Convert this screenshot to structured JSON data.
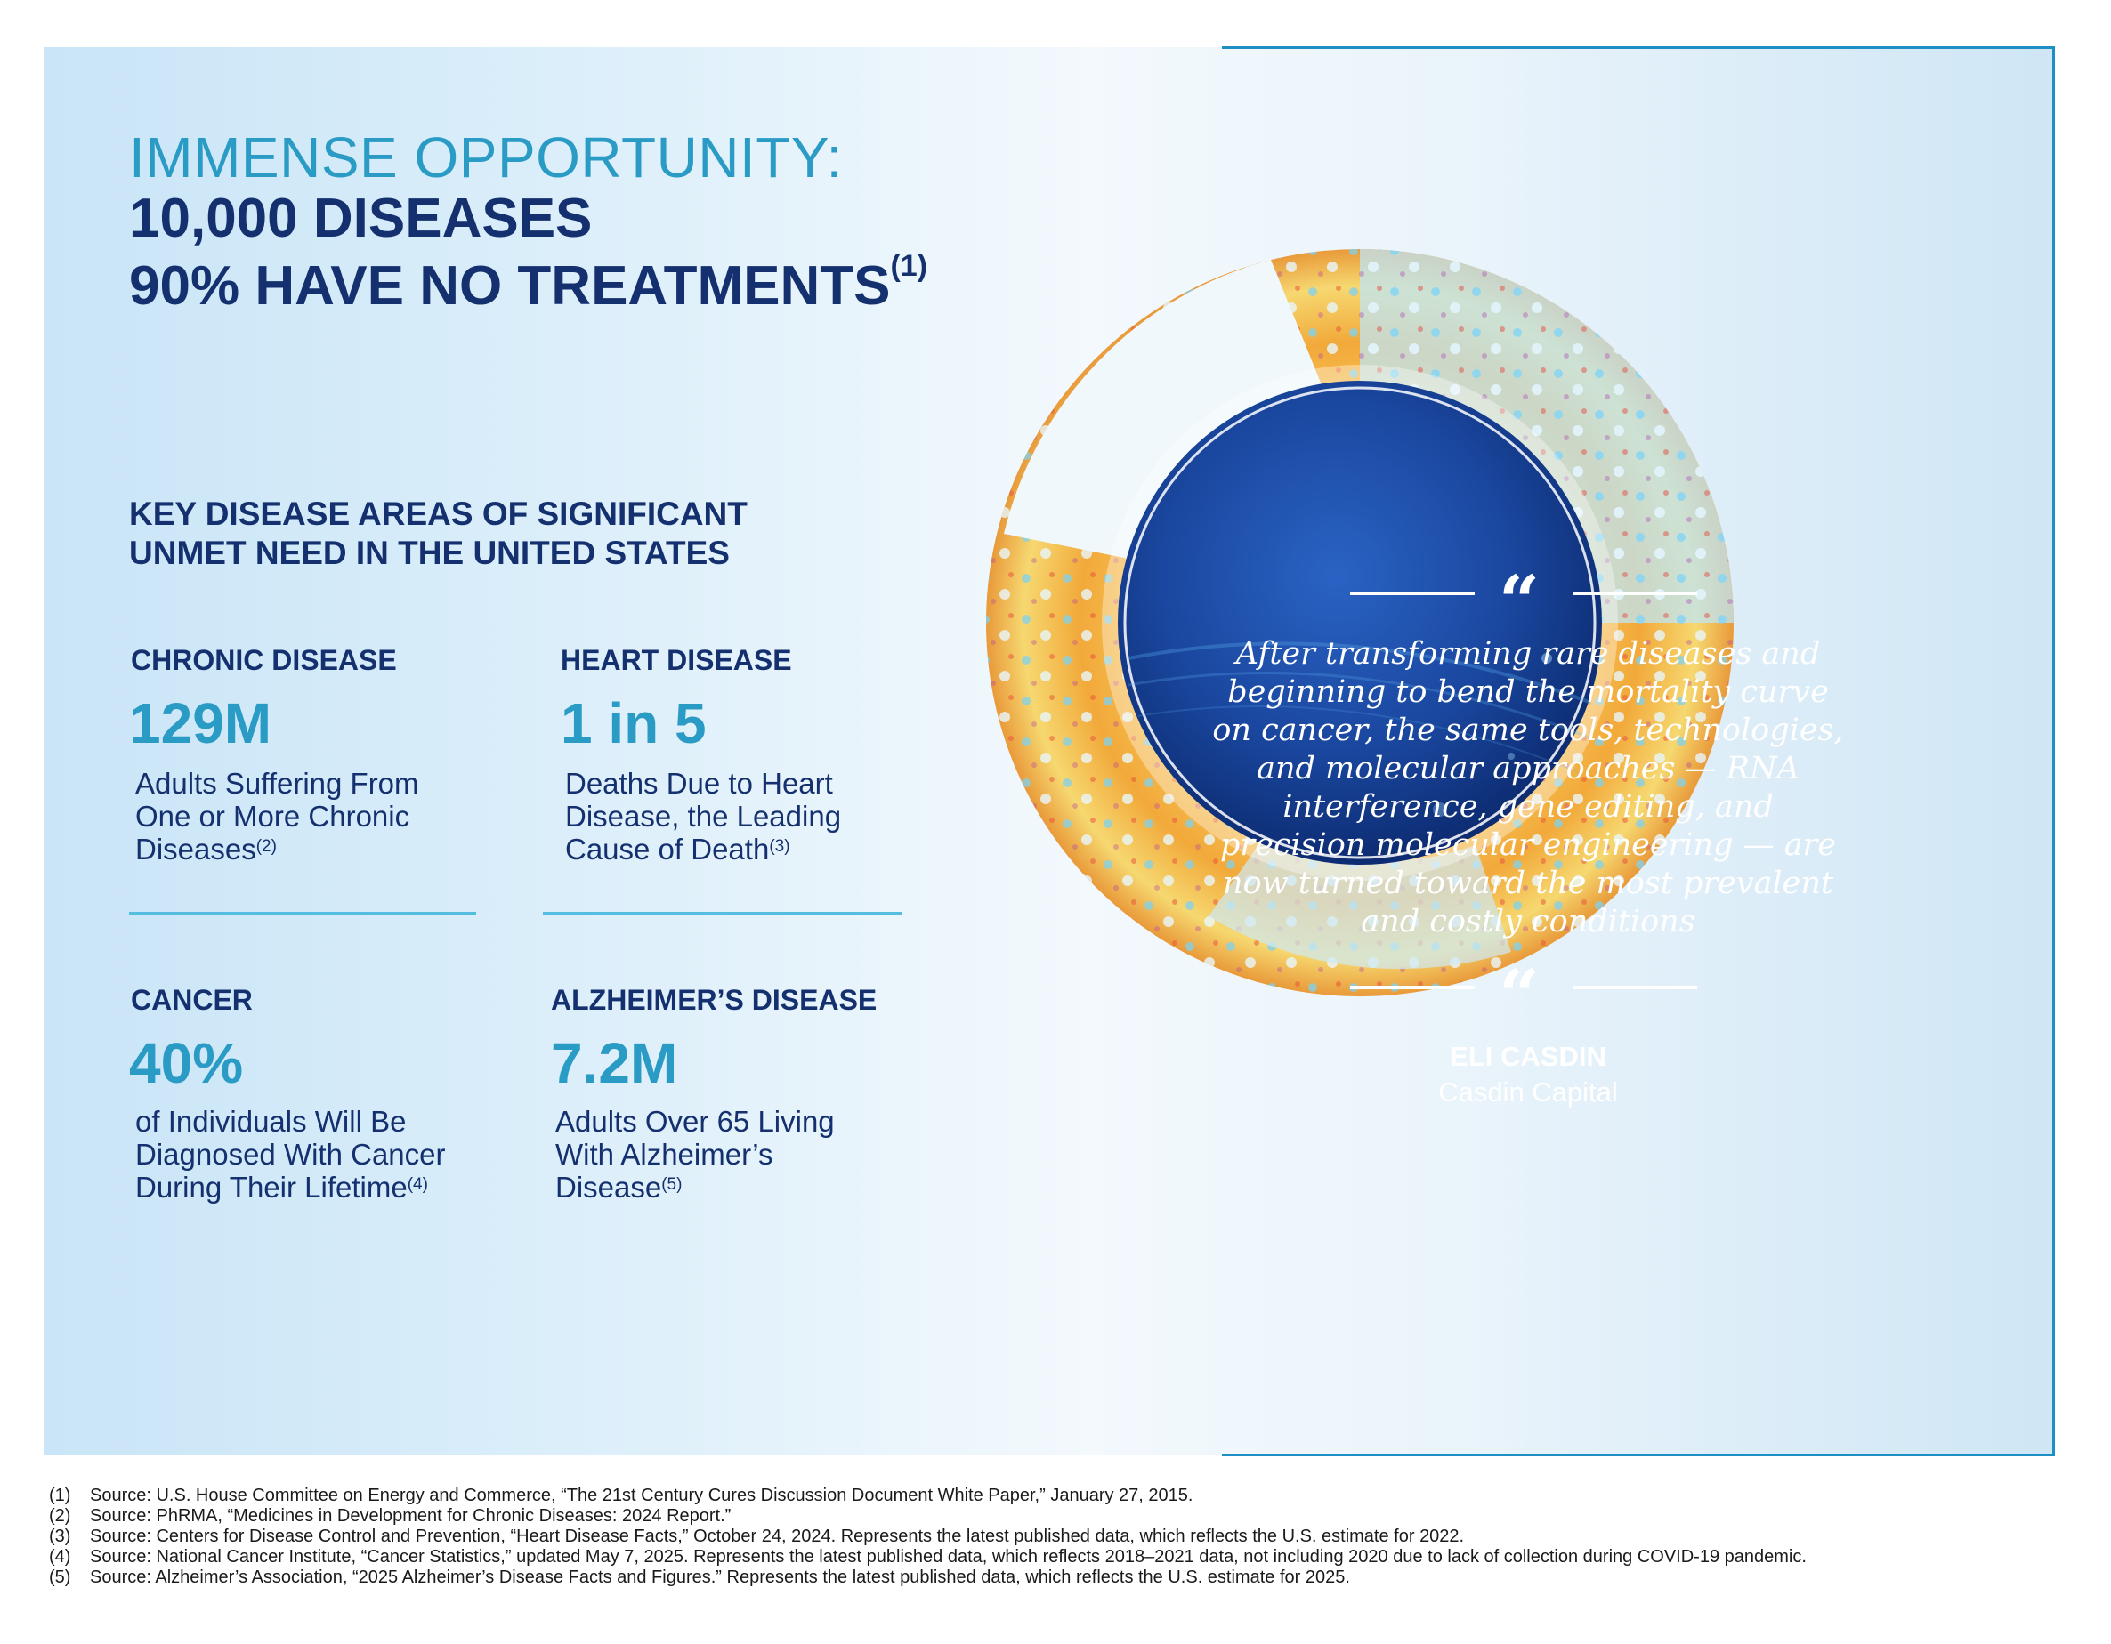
{
  "header": {
    "line1": "IMMENSE OPPORTUNITY:",
    "line2": "10,000 DISEASES",
    "line3": "90% HAVE NO TREATMENTS",
    "line3_ref": "(1)"
  },
  "subheading": {
    "line1": "KEY DISEASE AREAS OF SIGNIFICANT",
    "line2": "UNMET NEED IN THE UNITED STATES"
  },
  "stats": [
    {
      "category": "CHRONIC DISEASE",
      "value": "129M",
      "desc_lines": [
        "Adults Suffering From",
        "One or More Chronic",
        "Diseases"
      ],
      "ref": "(2)"
    },
    {
      "category": "HEART DISEASE",
      "value": "1 in 5",
      "desc_lines": [
        "Deaths Due to Heart",
        "Disease, the Leading",
        "Cause of Death"
      ],
      "ref": "(3)"
    },
    {
      "category": "CANCER",
      "value": "40%",
      "desc_lines": [
        "of Individuals Will Be",
        "Diagnosed With Cancer",
        "During Their Lifetime"
      ],
      "ref": "(4)"
    },
    {
      "category": "ALZHEIMER’S DISEASE",
      "value": "7.2M",
      "desc_lines": [
        "Adults Over 65 Living",
        "With Alzheimer’s",
        "Disease"
      ],
      "ref": "(5)"
    }
  ],
  "quote": {
    "mark": "“",
    "lines": [
      "After transforming rare diseases and",
      "beginning to bend the mortality curve",
      "on cancer, the same tools, technologies,",
      "and molecular approaches — RNA",
      "interference, gene editing, and",
      "precision molecular engineering — are",
      "now turned toward the most prevalent",
      "and costly conditions"
    ],
    "author": "ELI CASDIN",
    "firm": "Casdin Capital"
  },
  "footnotes": [
    {
      "num": "(1)",
      "text": "Source: U.S. House Committee on Energy and Commerce, “The 21st Century Cures Discussion Document White Paper,” January 27, 2015."
    },
    {
      "num": "(2)",
      "text": "Source: PhRMA, “Medicines in Development for Chronic Diseases: 2024 Report.”"
    },
    {
      "num": "(3)",
      "text": "Source: Centers for Disease Control and Prevention, “Heart Disease Facts,” October 24, 2024. Represents the latest published data, which reflects the U.S. estimate for 2022."
    },
    {
      "num": "(4)",
      "text": "Source: National Cancer Institute, “Cancer Statistics,” updated May 7, 2025. Represents the latest published data, which reflects 2018–2021 data, not including 2020 due to lack of collection during COVID-19 pandemic."
    },
    {
      "num": "(5)",
      "text": "Source: Alzheimer’s Association, “2025 Alzheimer’s Disease Facts and Figures.” Represents the latest published data, which reflects the U.S. estimate for 2025."
    }
  ],
  "colors": {
    "navy": "#14306e",
    "accent": "#2a9bc4",
    "frame": "#1e8fc4"
  }
}
